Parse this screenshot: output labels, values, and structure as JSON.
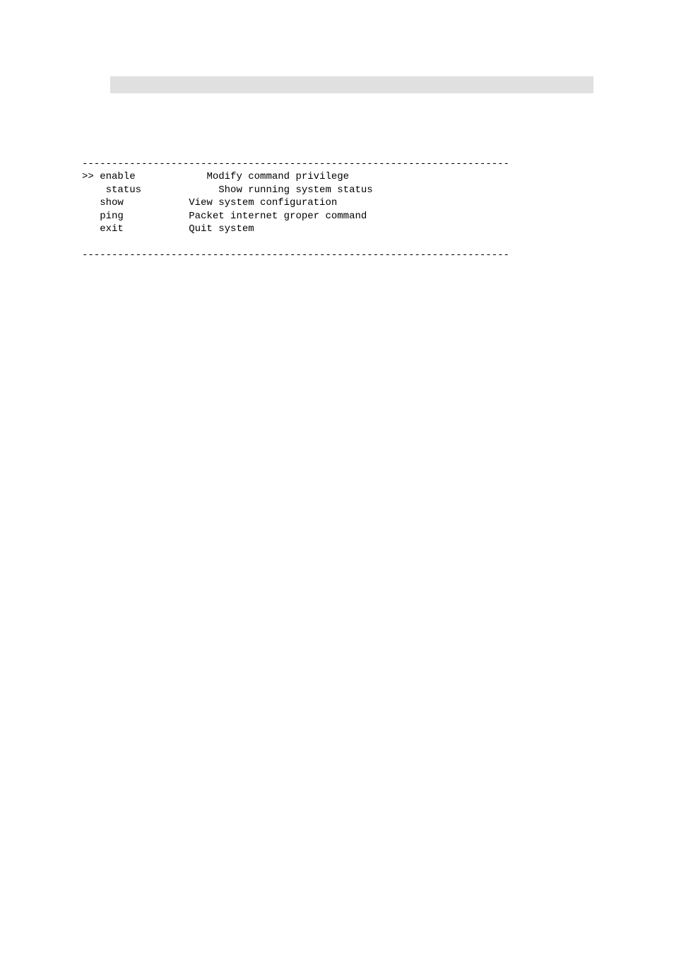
{
  "header_bar": {
    "background_color": "#e0e0e0"
  },
  "codeblock": {
    "font_family": "Courier New",
    "font_size": 14,
    "text_color": "#000000",
    "rule_top": "------------------------------------------------------------------------",
    "rule_bottom": "------------------------------------------------------------------------",
    "rows": [
      {
        "cmd": ">> enable",
        "desc": "            Modify command privilege"
      },
      {
        "cmd": "    status",
        "desc": "             Show running system status"
      },
      {
        "cmd": "   show",
        "desc": "           View system configuration"
      },
      {
        "cmd": "   ping",
        "desc": "           Packet internet groper command"
      },
      {
        "cmd": "   exit",
        "desc": "           Quit system"
      }
    ]
  }
}
